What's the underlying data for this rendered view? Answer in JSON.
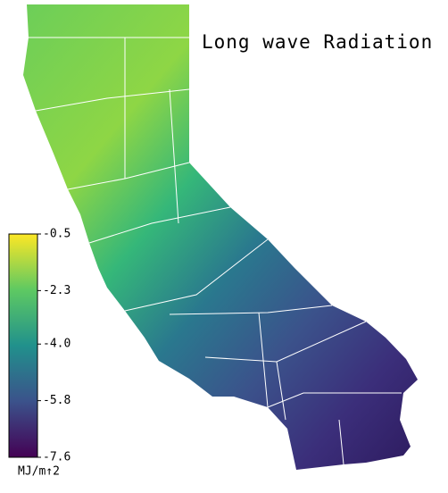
{
  "title": "Long wave Radiation",
  "colorbar": {
    "lim": [
      -7.6,
      -0.5
    ],
    "ticks": [
      -0.5,
      -2.3,
      {
        "value": -4,
        "label": "-4.0"
      },
      -5.8,
      -7.6
    ],
    "label": "MJ/m↑2"
  }
}
